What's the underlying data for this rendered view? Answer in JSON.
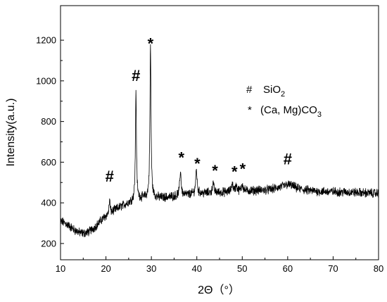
{
  "chart_data": {
    "type": "line",
    "xlabel": "2Θ（°）",
    "ylabel": "Intensity(a.u.)",
    "xlim": [
      10,
      80
    ],
    "ylim": [
      120,
      1370
    ],
    "x_ticks": [
      10,
      20,
      30,
      40,
      50,
      60,
      70,
      80
    ],
    "y_ticks": [
      200,
      400,
      600,
      800,
      1000,
      1200
    ],
    "grid": false,
    "line_color": "#000000",
    "baseline": [
      [
        10,
        310
      ],
      [
        11,
        300
      ],
      [
        12,
        285
      ],
      [
        13,
        268
      ],
      [
        14,
        255
      ],
      [
        15,
        250
      ],
      [
        16,
        255
      ],
      [
        17,
        270
      ],
      [
        18,
        290
      ],
      [
        19,
        315
      ],
      [
        20,
        335
      ],
      [
        21,
        350
      ],
      [
        22,
        365
      ],
      [
        23,
        378
      ],
      [
        24,
        390
      ],
      [
        25,
        400
      ],
      [
        26,
        410
      ],
      [
        27,
        418
      ],
      [
        28,
        422
      ],
      [
        30,
        425
      ],
      [
        32,
        425
      ],
      [
        34,
        428
      ],
      [
        36,
        435
      ],
      [
        38,
        440
      ],
      [
        40,
        445
      ],
      [
        42,
        448
      ],
      [
        44,
        450
      ],
      [
        46,
        452
      ],
      [
        48,
        455
      ],
      [
        50,
        458
      ],
      [
        52,
        460
      ],
      [
        54,
        462
      ],
      [
        56,
        465
      ],
      [
        58,
        475
      ],
      [
        59,
        482
      ],
      [
        60,
        490
      ],
      [
        61,
        485
      ],
      [
        62,
        472
      ],
      [
        64,
        462
      ],
      [
        66,
        458
      ],
      [
        68,
        455
      ],
      [
        70,
        455
      ],
      [
        72,
        453
      ],
      [
        74,
        452
      ],
      [
        76,
        450
      ],
      [
        78,
        448
      ],
      [
        80,
        447
      ]
    ],
    "peaks": [
      {
        "x": 20.8,
        "height": 70,
        "width": 0.12
      },
      {
        "x": 26.6,
        "height": 540,
        "width": 0.13
      },
      {
        "x": 29.8,
        "height": 750,
        "width": 0.14
      },
      {
        "x": 36.4,
        "height": 120,
        "width": 0.18
      },
      {
        "x": 39.9,
        "height": 120,
        "width": 0.18
      },
      {
        "x": 43.6,
        "height": 45,
        "width": 0.2
      },
      {
        "x": 47.8,
        "height": 40,
        "width": 0.2
      },
      {
        "x": 48.7,
        "height": 30,
        "width": 0.2
      },
      {
        "x": 50.0,
        "height": 35,
        "width": 0.2
      }
    ],
    "noise_amplitude": 18,
    "annotations": [
      {
        "symbol": "#",
        "x": 20.8,
        "y": 505
      },
      {
        "symbol": "#",
        "x": 26.6,
        "y": 1000
      },
      {
        "symbol": "*",
        "x": 29.8,
        "y": 1205
      },
      {
        "symbol": "*",
        "x": 36.6,
        "y": 645
      },
      {
        "symbol": "*",
        "x": 40.1,
        "y": 615
      },
      {
        "symbol": "*",
        "x": 44.0,
        "y": 580
      },
      {
        "symbol": "*",
        "x": 48.3,
        "y": 575
      },
      {
        "symbol": "*",
        "x": 50.1,
        "y": 590
      },
      {
        "symbol": "#",
        "x": 60.0,
        "y": 590
      }
    ],
    "legend": {
      "placement": "right",
      "items": [
        {
          "symbol": "#",
          "label": "SiO",
          "subscript": "2"
        },
        {
          "symbol": "*",
          "label": "(Ca, Mg)CO",
          "subscript": "3"
        }
      ]
    }
  }
}
